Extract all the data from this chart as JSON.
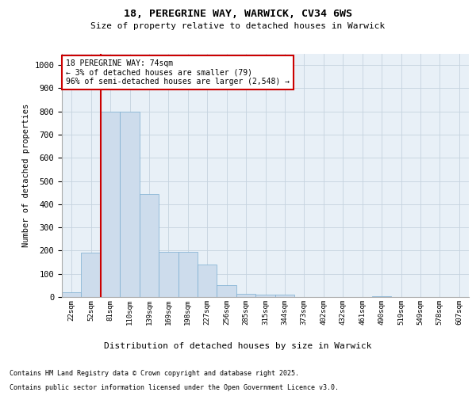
{
  "title_line1": "18, PEREGRINE WAY, WARWICK, CV34 6WS",
  "title_line2": "Size of property relative to detached houses in Warwick",
  "xlabel": "Distribution of detached houses by size in Warwick",
  "ylabel": "Number of detached properties",
  "annotation_line1": "18 PEREGRINE WAY: 74sqm",
  "annotation_line2": "← 3% of detached houses are smaller (79)",
  "annotation_line3": "96% of semi-detached houses are larger (2,548) →",
  "bar_color": "#cddcec",
  "bar_edge_color": "#7aadd0",
  "vline_color": "#cc0000",
  "grid_color": "#c5d3df",
  "background_color": "#e8f0f7",
  "categories": [
    "22sqm",
    "52sqm",
    "81sqm",
    "110sqm",
    "139sqm",
    "169sqm",
    "198sqm",
    "227sqm",
    "256sqm",
    "285sqm",
    "315sqm",
    "344sqm",
    "373sqm",
    "402sqm",
    "432sqm",
    "461sqm",
    "490sqm",
    "519sqm",
    "549sqm",
    "578sqm",
    "607sqm"
  ],
  "values": [
    20,
    190,
    800,
    800,
    445,
    195,
    195,
    140,
    50,
    15,
    10,
    10,
    0,
    0,
    0,
    0,
    5,
    0,
    0,
    0,
    0
  ],
  "ylim": [
    0,
    1050
  ],
  "yticks": [
    0,
    100,
    200,
    300,
    400,
    500,
    600,
    700,
    800,
    900,
    1000
  ],
  "vline_x": 1.5,
  "footer_line1": "Contains HM Land Registry data © Crown copyright and database right 2025.",
  "footer_line2": "Contains public sector information licensed under the Open Government Licence v3.0."
}
